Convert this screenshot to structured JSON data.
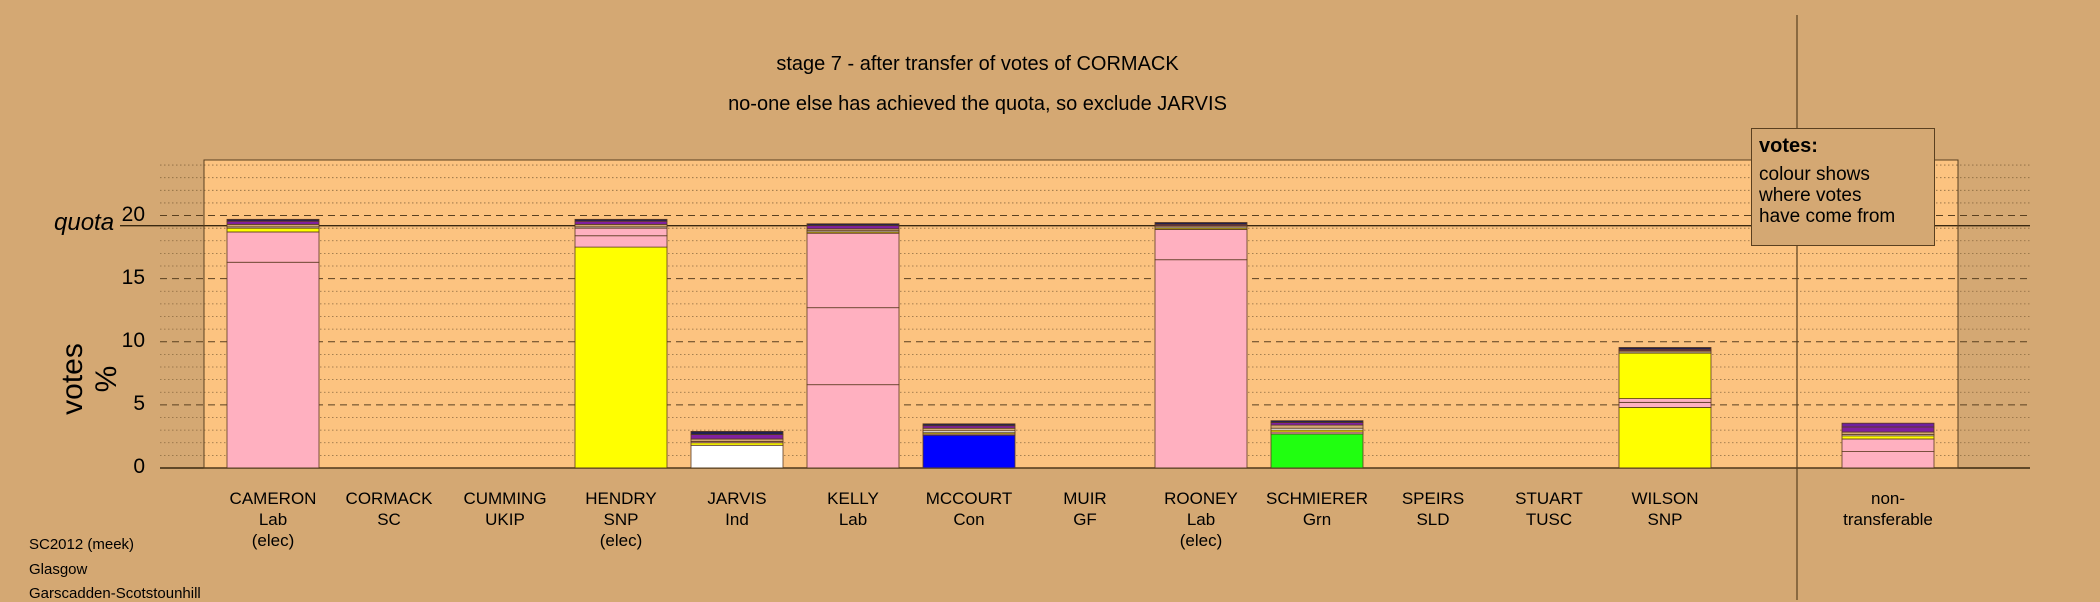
{
  "chart_data": {
    "type": "bar",
    "title": "stage 7 - after transfer of votes of CORMACK",
    "subtitle": "no-one else has achieved the quota, so exclude JARVIS",
    "ylabel": "votes %",
    "ylim": [
      0,
      24.4
    ],
    "yticks": [
      "0",
      "5",
      "10",
      "15",
      "20"
    ],
    "quota_label": "quota",
    "quota_value": 19.2,
    "grid": true,
    "candidates": [
      {
        "name": "CAMERON",
        "party": "Lab",
        "status": "(elec)",
        "segments": [
          {
            "value": 16.3,
            "color": "#ffb0c0"
          },
          {
            "value": 2.4,
            "color": "#ffb0c0"
          },
          {
            "value": 0.3,
            "color": "#ffff00"
          },
          {
            "value": 0.1,
            "color": "#ffffff"
          },
          {
            "value": 0.2,
            "color": "#d4a873"
          },
          {
            "value": 0.25,
            "color": "#8020a0"
          },
          {
            "value": 0.15,
            "color": "#202050"
          }
        ]
      },
      {
        "name": "CORMACK",
        "party": "SC",
        "status": "",
        "segments": []
      },
      {
        "name": "CUMMING",
        "party": "UKIP",
        "status": "",
        "segments": []
      },
      {
        "name": "HENDRY",
        "party": "SNP",
        "status": "(elec)",
        "segments": [
          {
            "value": 17.5,
            "color": "#ffff00"
          },
          {
            "value": 0.9,
            "color": "#ffb0c0"
          },
          {
            "value": 0.6,
            "color": "#ffb0c0"
          },
          {
            "value": 0.1,
            "color": "#ffffff"
          },
          {
            "value": 0.2,
            "color": "#d4a873"
          },
          {
            "value": 0.25,
            "color": "#8020a0"
          },
          {
            "value": 0.15,
            "color": "#202050"
          }
        ]
      },
      {
        "name": "JARVIS",
        "party": "Ind",
        "status": "",
        "segments": [
          {
            "value": 1.8,
            "color": "#ffffff"
          },
          {
            "value": 0.2,
            "color": "#ffff00"
          },
          {
            "value": 0.1,
            "color": "#ffb0c0"
          },
          {
            "value": 0.2,
            "color": "#d4a873"
          },
          {
            "value": 0.35,
            "color": "#8020a0"
          },
          {
            "value": 0.25,
            "color": "#202050"
          }
        ]
      },
      {
        "name": "KELLY",
        "party": "Lab",
        "status": "",
        "segments": [
          {
            "value": 6.6,
            "color": "#ffb0c0"
          },
          {
            "value": 6.1,
            "color": "#ffb0c0"
          },
          {
            "value": 5.9,
            "color": "#ffb0c0"
          },
          {
            "value": 0.1,
            "color": "#ffff00"
          },
          {
            "value": 0.1,
            "color": "#ffffff"
          },
          {
            "value": 0.15,
            "color": "#d4a873"
          },
          {
            "value": 0.25,
            "color": "#8020a0"
          },
          {
            "value": 0.15,
            "color": "#202050"
          }
        ]
      },
      {
        "name": "MCCOURT",
        "party": "Con",
        "status": "",
        "segments": [
          {
            "value": 2.6,
            "color": "#0000ff"
          },
          {
            "value": 0.1,
            "color": "#ffb0c0"
          },
          {
            "value": 0.1,
            "color": "#ffff00"
          },
          {
            "value": 0.15,
            "color": "#ffffff"
          },
          {
            "value": 0.2,
            "color": "#d4a873"
          },
          {
            "value": 0.2,
            "color": "#8020a0"
          },
          {
            "value": 0.15,
            "color": "#202050"
          }
        ]
      },
      {
        "name": "MUIR",
        "party": "GF",
        "status": "",
        "segments": []
      },
      {
        "name": "ROONEY",
        "party": "Lab",
        "status": "(elec)",
        "segments": [
          {
            "value": 16.5,
            "color": "#ffb0c0"
          },
          {
            "value": 2.4,
            "color": "#ffb0c0"
          },
          {
            "value": 0.1,
            "color": "#ffff00"
          },
          {
            "value": 0.1,
            "color": "#ffffff"
          },
          {
            "value": 0.1,
            "color": "#d4a873"
          },
          {
            "value": 0.1,
            "color": "#8020a0"
          },
          {
            "value": 0.15,
            "color": "#202050"
          }
        ]
      },
      {
        "name": "SCHMIERER",
        "party": "Grn",
        "status": "",
        "segments": [
          {
            "value": 2.7,
            "color": "#20ff10"
          },
          {
            "value": 0.15,
            "color": "#ffb0c0"
          },
          {
            "value": 0.15,
            "color": "#ffff00"
          },
          {
            "value": 0.15,
            "color": "#ffffff"
          },
          {
            "value": 0.25,
            "color": "#d4a873"
          },
          {
            "value": 0.2,
            "color": "#8020a0"
          },
          {
            "value": 0.15,
            "color": "#202050"
          }
        ]
      },
      {
        "name": "SPEIRS",
        "party": "SLD",
        "status": "",
        "segments": []
      },
      {
        "name": "STUART",
        "party": "TUSC",
        "status": "",
        "segments": []
      },
      {
        "name": "WILSON",
        "party": "SNP",
        "status": "",
        "segments": [
          {
            "value": 4.8,
            "color": "#ffff00"
          },
          {
            "value": 0.4,
            "color": "#ffb0c0"
          },
          {
            "value": 0.3,
            "color": "#ffb0c0"
          },
          {
            "value": 3.6,
            "color": "#ffff00"
          },
          {
            "value": 0.1,
            "color": "#ffffff"
          },
          {
            "value": 0.1,
            "color": "#d4a873"
          },
          {
            "value": 0.1,
            "color": "#8020a0"
          },
          {
            "value": 0.15,
            "color": "#202050"
          }
        ]
      },
      {
        "name": "non-",
        "party": "transferable",
        "status": "",
        "segments": [
          {
            "value": 1.3,
            "color": "#ffb0c0"
          },
          {
            "value": 1.0,
            "color": "#ffb0c0"
          },
          {
            "value": 0.25,
            "color": "#ffff00"
          },
          {
            "value": 0.1,
            "color": "#ffffff"
          },
          {
            "value": 0.2,
            "color": "#d4a873"
          },
          {
            "value": 0.4,
            "color": "#8020a0"
          },
          {
            "value": 0.3,
            "color": "#7020a0"
          }
        ]
      }
    ]
  },
  "legend": {
    "title": "votes:",
    "lines": [
      "colour shows",
      "where votes",
      "have come from"
    ]
  },
  "footnotes": [
    "SC2012 (meek)",
    "Glasgow",
    "Garscadden-Scotstounhill"
  ],
  "colors": {
    "background": "#d4a873",
    "plot_area": "#fcc380",
    "border": "#5a4020"
  }
}
